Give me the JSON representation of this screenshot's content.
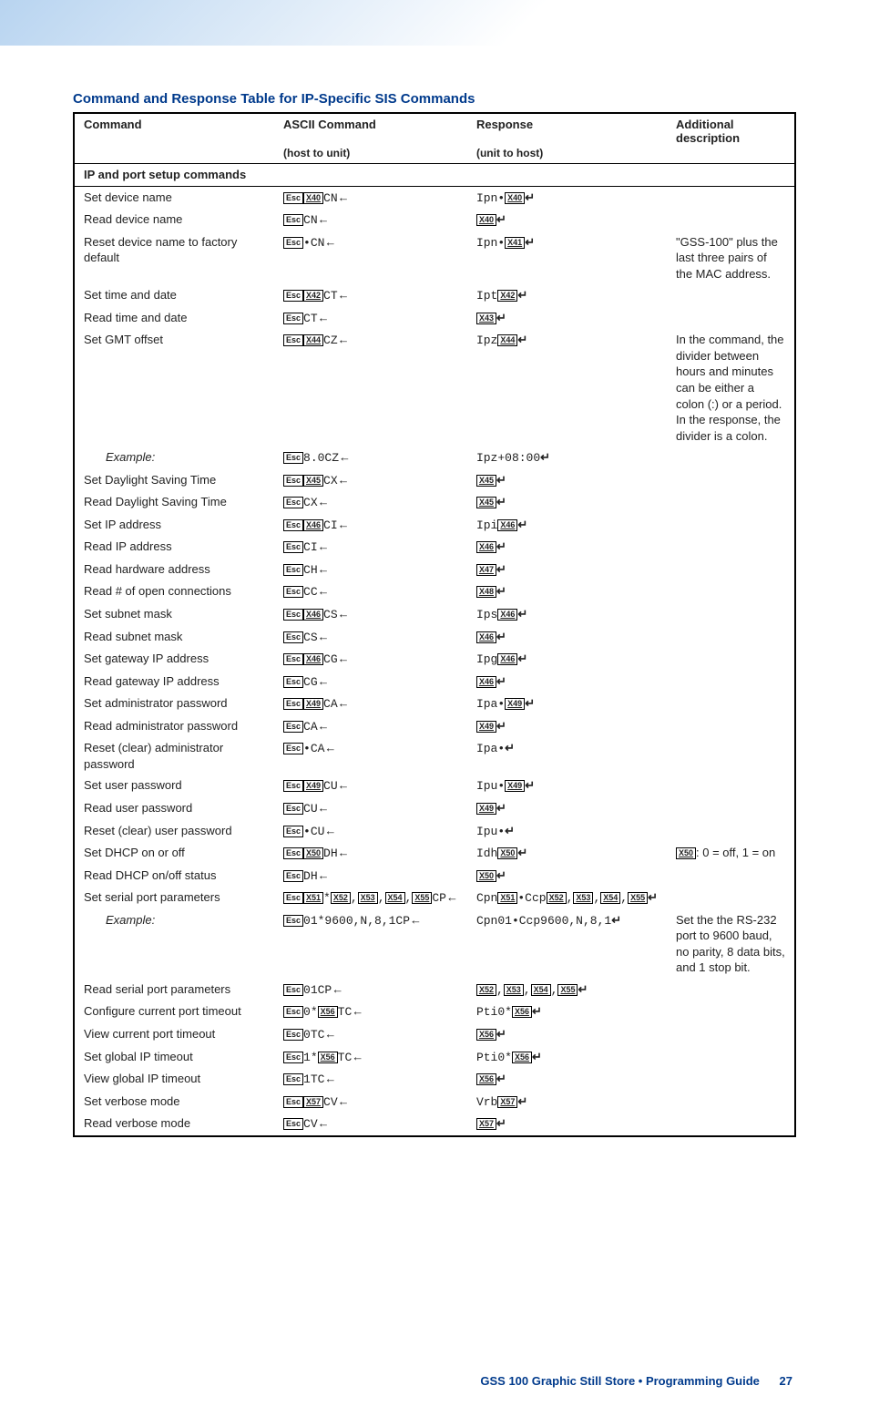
{
  "title": "Command and Response Table for IP-Specific SIS Commands",
  "headers": {
    "c1": "Command",
    "c2": "ASCII Command",
    "c2sub": "(host to unit)",
    "c3": "Response",
    "c3sub": "(unit to host)",
    "c4": "Additional description"
  },
  "section": "IP and port setup commands",
  "esc": "Esc",
  "rows": [
    {
      "cmd": "Set device name",
      "ascii": [
        {
          "k": "Esc"
        },
        {
          "x": "X40"
        },
        "CN",
        {
          "la": 1
        }
      ],
      "resp": [
        "Ipn•",
        {
          "x": "X40"
        },
        {
          "ret": 1
        }
      ],
      "desc": ""
    },
    {
      "cmd": "Read device name",
      "ascii": [
        {
          "k": "Esc"
        },
        "CN",
        {
          "la": 1
        }
      ],
      "resp": [
        {
          "x": "X40"
        },
        {
          "ret": 1
        }
      ],
      "desc": ""
    },
    {
      "cmd": "Reset device name to factory default",
      "ascii": [
        {
          "k": "Esc"
        },
        "•CN",
        {
          "la": 1
        }
      ],
      "resp": [
        "Ipn•",
        {
          "x": "X41"
        },
        {
          "ret": 1
        }
      ],
      "desc": "\"GSS-100\" plus the last three pairs of the MAC address."
    },
    {
      "cmd": "Set time and date",
      "ascii": [
        {
          "k": "Esc"
        },
        {
          "x": "X42"
        },
        "CT",
        {
          "la": 1
        }
      ],
      "resp": [
        "Ipt",
        {
          "x": "X42"
        },
        {
          "ret": 1
        }
      ],
      "desc": ""
    },
    {
      "cmd": "Read time and date",
      "ascii": [
        {
          "k": "Esc"
        },
        "CT",
        {
          "la": 1
        }
      ],
      "resp": [
        {
          "x": "X43"
        },
        {
          "ret": 1
        }
      ],
      "desc": ""
    },
    {
      "cmd": "Set GMT offset",
      "ascii": [
        {
          "k": "Esc"
        },
        {
          "x": "X44"
        },
        "CZ",
        {
          "la": 1
        }
      ],
      "resp": [
        "Ipz",
        {
          "x": "X44"
        },
        {
          "ret": 1
        }
      ],
      "desc": "In the command, the divider between hours and minutes can be either a colon (:) or a period. In the response, the divider is a colon."
    },
    {
      "cmd": "Example:",
      "italic": true,
      "ascii": [
        {
          "k": "Esc"
        },
        "8.0CZ",
        {
          "la": 1
        }
      ],
      "resp": [
        "Ipz+08:00",
        {
          "ret": 1
        }
      ],
      "desc": ""
    },
    {
      "cmd": "Set Daylight Saving Time",
      "ascii": [
        {
          "k": "Esc"
        },
        {
          "x": "X45"
        },
        "CX",
        {
          "la": 1
        }
      ],
      "resp": [
        {
          "x": "X45"
        },
        {
          "ret": 1
        }
      ],
      "desc": ""
    },
    {
      "cmd": "Read Daylight Saving Time",
      "ascii": [
        {
          "k": "Esc"
        },
        "CX",
        {
          "la": 1
        }
      ],
      "resp": [
        {
          "x": "X45"
        },
        {
          "ret": 1
        }
      ],
      "desc": ""
    },
    {
      "cmd": "Set IP address",
      "ascii": [
        {
          "k": "Esc"
        },
        {
          "x": "X46"
        },
        "CI",
        {
          "la": 1
        }
      ],
      "resp": [
        "Ipi",
        {
          "x": "X46"
        },
        {
          "ret": 1
        }
      ],
      "desc": ""
    },
    {
      "cmd": "Read IP address",
      "ascii": [
        {
          "k": "Esc"
        },
        "CI",
        {
          "la": 1
        }
      ],
      "resp": [
        {
          "x": "X46"
        },
        {
          "ret": 1
        }
      ],
      "desc": ""
    },
    {
      "cmd": "Read hardware address",
      "ascii": [
        {
          "k": "Esc"
        },
        "CH",
        {
          "la": 1
        }
      ],
      "resp": [
        {
          "x": "X47"
        },
        {
          "ret": 1
        }
      ],
      "desc": ""
    },
    {
      "cmd": "Read # of open connections",
      "ascii": [
        {
          "k": "Esc"
        },
        "CC",
        {
          "la": 1
        }
      ],
      "resp": [
        {
          "x": "X48"
        },
        {
          "ret": 1
        }
      ],
      "desc": ""
    },
    {
      "cmd": "Set subnet mask",
      "ascii": [
        {
          "k": "Esc"
        },
        {
          "x": "X46"
        },
        "CS",
        {
          "la": 1
        }
      ],
      "resp": [
        "Ips",
        {
          "x": "X46"
        },
        {
          "ret": 1
        }
      ],
      "desc": ""
    },
    {
      "cmd": "Read subnet mask",
      "ascii": [
        {
          "k": "Esc"
        },
        "CS",
        {
          "la": 1
        }
      ],
      "resp": [
        {
          "x": "X46"
        },
        {
          "ret": 1
        }
      ],
      "desc": ""
    },
    {
      "cmd": "Set gateway IP address",
      "ascii": [
        {
          "k": "Esc"
        },
        {
          "x": "X46"
        },
        "CG",
        {
          "la": 1
        }
      ],
      "resp": [
        "Ipg",
        {
          "x": "X46"
        },
        {
          "ret": 1
        }
      ],
      "desc": ""
    },
    {
      "cmd": "Read gateway IP address",
      "ascii": [
        {
          "k": "Esc"
        },
        "CG",
        {
          "la": 1
        }
      ],
      "resp": [
        {
          "x": "X46"
        },
        {
          "ret": 1
        }
      ],
      "desc": ""
    },
    {
      "cmd": "Set administrator password",
      "ascii": [
        {
          "k": "Esc"
        },
        {
          "x": "X49"
        },
        "CA",
        {
          "la": 1
        }
      ],
      "resp": [
        "Ipa•",
        {
          "x": "X49"
        },
        {
          "ret": 1
        }
      ],
      "desc": ""
    },
    {
      "cmd": "Read administrator password",
      "ascii": [
        {
          "k": "Esc"
        },
        "CA",
        {
          "la": 1
        }
      ],
      "resp": [
        {
          "x": "X49"
        },
        {
          "ret": 1
        }
      ],
      "desc": ""
    },
    {
      "cmd": "Reset (clear) administrator password",
      "ascii": [
        {
          "k": "Esc"
        },
        "•CA",
        {
          "la": 1
        }
      ],
      "resp": [
        "Ipa•",
        {
          "ret": 1
        }
      ],
      "desc": ""
    },
    {
      "cmd": "Set user password",
      "ascii": [
        {
          "k": "Esc"
        },
        {
          "x": "X49"
        },
        "CU",
        {
          "la": 1
        }
      ],
      "resp": [
        "Ipu•",
        {
          "x": "X49"
        },
        {
          "ret": 1
        }
      ],
      "desc": ""
    },
    {
      "cmd": "Read user password",
      "ascii": [
        {
          "k": "Esc"
        },
        "CU",
        {
          "la": 1
        }
      ],
      "resp": [
        {
          "x": "X49"
        },
        {
          "ret": 1
        }
      ],
      "desc": ""
    },
    {
      "cmd": "Reset (clear) user password",
      "ascii": [
        {
          "k": "Esc"
        },
        "•CU",
        {
          "la": 1
        }
      ],
      "resp": [
        "Ipu•",
        {
          "ret": 1
        }
      ],
      "desc": ""
    },
    {
      "cmd": "Set DHCP on or off",
      "ascii": [
        {
          "k": "Esc"
        },
        {
          "x": "X50"
        },
        "DH",
        {
          "la": 1
        }
      ],
      "resp": [
        "Idh",
        {
          "x": "X50"
        },
        {
          "ret": 1
        }
      ],
      "desc": [
        {
          "x": "X50"
        },
        ": 0 = off, 1 = on"
      ]
    },
    {
      "cmd": "Read DHCP on/off status",
      "ascii": [
        {
          "k": "Esc"
        },
        "DH",
        {
          "la": 1
        }
      ],
      "resp": [
        {
          "x": "X50"
        },
        {
          "ret": 1
        }
      ],
      "desc": ""
    },
    {
      "cmd": "Set serial port parameters",
      "ascii": [
        {
          "k": "Esc"
        },
        {
          "x": "X51"
        },
        "*",
        {
          "x": "X52"
        },
        ",",
        {
          "x": "X53"
        },
        ",",
        {
          "x": "X54"
        },
        ",",
        {
          "x": "X55"
        },
        "CP",
        {
          "la": 1
        }
      ],
      "resp": [
        "Cpn",
        {
          "x": "X51"
        },
        "•Ccp",
        {
          "x": "X52"
        },
        ",",
        {
          "x": "X53"
        },
        ",",
        {
          "x": "X54"
        },
        ",",
        {
          "x": "X55"
        },
        {
          "ret": 1
        }
      ],
      "desc": ""
    },
    {
      "cmd": "Example:",
      "italic": true,
      "ascii": [
        {
          "k": "Esc"
        },
        "01*9600,N,8,1CP",
        {
          "la": 1
        }
      ],
      "resp": [
        "Cpn01•Ccp9600,N,8,1",
        {
          "ret": 1
        }
      ],
      "desc": "Set the the RS-232 port to 9600 baud, no parity, 8 data bits, and 1 stop bit."
    },
    {
      "cmd": "Read serial port parameters",
      "ascii": [
        {
          "k": "Esc"
        },
        "01CP",
        {
          "la": 1
        }
      ],
      "resp": [
        {
          "x": "X52"
        },
        ",",
        {
          "x": "X53"
        },
        ",",
        {
          "x": "X54"
        },
        ",",
        {
          "x": "X55"
        },
        {
          "ret": 1
        }
      ],
      "desc": ""
    },
    {
      "cmd": "Configure current port timeout",
      "ascii": [
        {
          "k": "Esc"
        },
        "0*",
        {
          "x": "X56"
        },
        "TC",
        {
          "la": 1
        }
      ],
      "resp": [
        "Pti0*",
        {
          "x": "X56"
        },
        {
          "ret": 1
        }
      ],
      "desc": ""
    },
    {
      "cmd": "View current port timeout",
      "ascii": [
        {
          "k": "Esc"
        },
        "0TC",
        {
          "la": 1
        }
      ],
      "resp": [
        {
          "x": "X56"
        },
        {
          "ret": 1
        }
      ],
      "desc": ""
    },
    {
      "cmd": "Set global IP timeout",
      "ascii": [
        {
          "k": "Esc"
        },
        "1*",
        {
          "x": "X56"
        },
        "TC",
        {
          "la": 1
        }
      ],
      "resp": [
        "Pti0*",
        {
          "x": "X56"
        },
        {
          "ret": 1
        }
      ],
      "desc": ""
    },
    {
      "cmd": "View global IP timeout",
      "ascii": [
        {
          "k": "Esc"
        },
        "1TC",
        {
          "la": 1
        }
      ],
      "resp": [
        {
          "x": "X56"
        },
        {
          "ret": 1
        }
      ],
      "desc": ""
    },
    {
      "cmd": "Set verbose mode",
      "ascii": [
        {
          "k": "Esc"
        },
        {
          "x": "X57"
        },
        "CV",
        {
          "la": 1
        }
      ],
      "resp": [
        "Vrb",
        {
          "x": "X57"
        },
        {
          "ret": 1
        }
      ],
      "desc": ""
    },
    {
      "cmd": "Read verbose mode",
      "ascii": [
        {
          "k": "Esc"
        },
        "CV",
        {
          "la": 1
        }
      ],
      "resp": [
        {
          "x": "X57"
        },
        {
          "ret": 1
        }
      ],
      "desc": ""
    }
  ],
  "footer": {
    "text": "GSS 100 Graphic Still Store • Programming Guide",
    "page": "27"
  }
}
